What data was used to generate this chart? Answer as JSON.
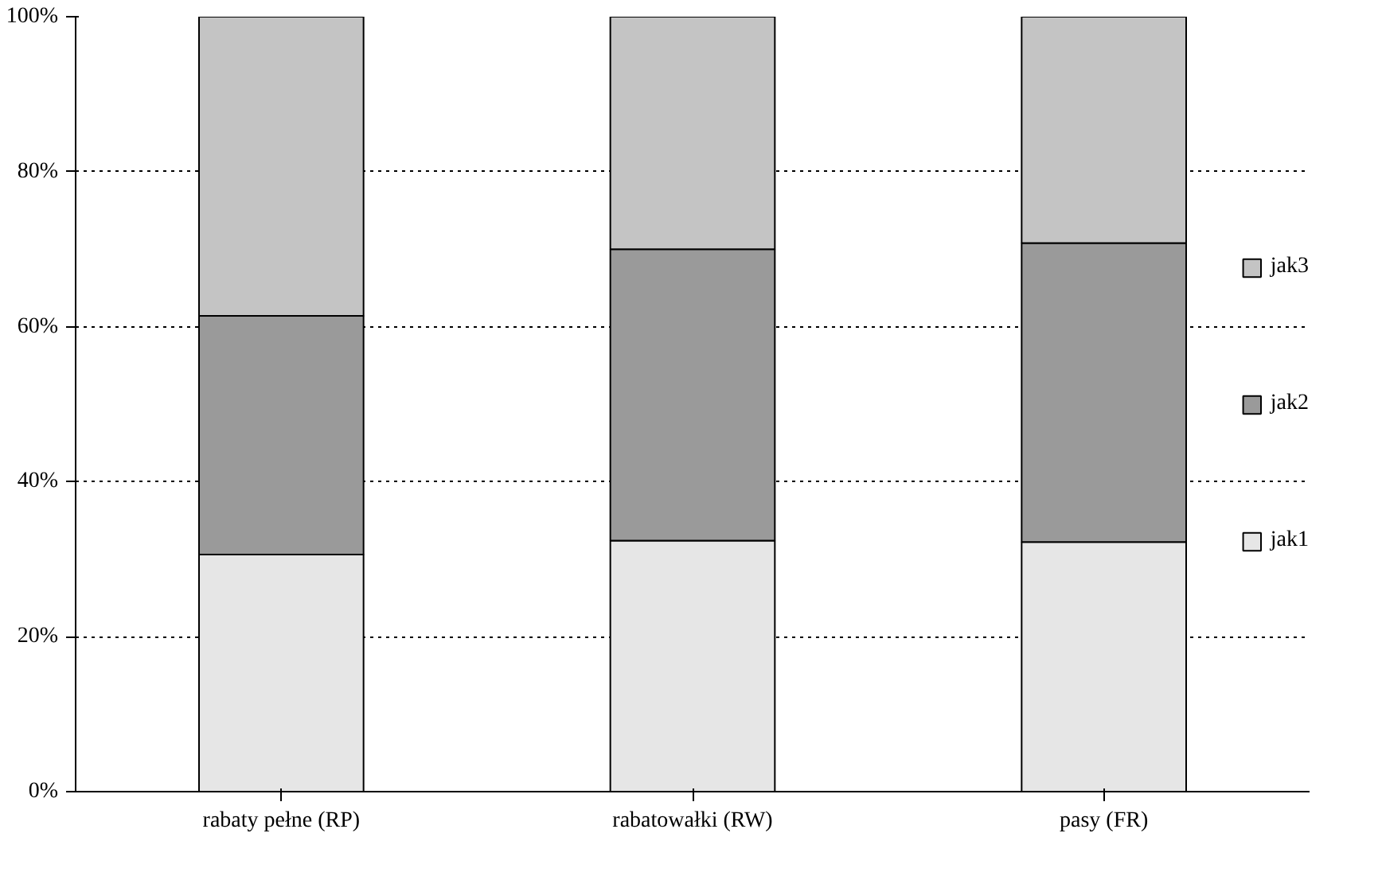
{
  "chart_data": {
    "type": "bar",
    "stacked": true,
    "categories": [
      "rabaty pełne (RP)",
      "rabatowałki (RW)",
      "pasy (FR)"
    ],
    "series": [
      {
        "name": "jak1",
        "color": "#e6e6e6",
        "values": [
          30.6,
          32.4,
          32.2
        ]
      },
      {
        "name": "jak2",
        "color": "#9a9a9a",
        "values": [
          30.8,
          37.6,
          38.6
        ]
      },
      {
        "name": "jak3",
        "color": "#c4c4c4",
        "values": [
          38.6,
          30.0,
          29.2
        ]
      }
    ],
    "ylim": [
      0,
      100
    ],
    "yticks": [
      {
        "value": 0,
        "label": "0%"
      },
      {
        "value": 20,
        "label": "20%"
      },
      {
        "value": 40,
        "label": "40%"
      },
      {
        "value": 60,
        "label": "60%"
      },
      {
        "value": 80,
        "label": "80%"
      },
      {
        "value": 100,
        "label": "100%"
      }
    ],
    "grid": "y",
    "legend": "right"
  }
}
